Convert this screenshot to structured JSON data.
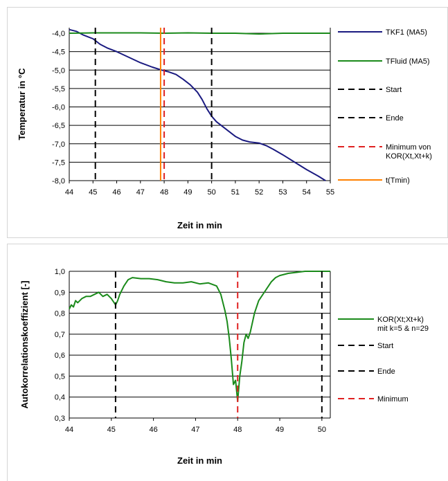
{
  "chart_data": [
    {
      "type": "line",
      "xlabel": "Zeit in min",
      "ylabel": "Temperatur in °C",
      "xlim": [
        44,
        55
      ],
      "ylim": [
        -8.0,
        -3.8
      ],
      "x_ticks": [
        "44",
        "45",
        "46",
        "47",
        "48",
        "49",
        "50",
        "51",
        "52",
        "53",
        "54",
        "55"
      ],
      "y_ticks": [
        "-4,0",
        "-4,5",
        "-5,0",
        "-5,5",
        "-6,0",
        "-6,5",
        "-7,0",
        "-7,5",
        "-8,0"
      ],
      "y_tick_values": [
        -4.0,
        -4.5,
        -5.0,
        -5.5,
        -6.0,
        -6.5,
        -7.0,
        -7.5,
        -8.0
      ],
      "grid": "horizontal",
      "legend_position": "right",
      "series": [
        {
          "name": "TKF1 (MA5)",
          "color": "#1a1a80",
          "x": [
            44.0,
            44.3,
            44.6,
            45.0,
            45.3,
            45.6,
            46.0,
            46.5,
            47.0,
            47.5,
            47.9,
            48.2,
            48.5,
            48.8,
            49.1,
            49.4,
            49.6,
            49.8,
            50.0,
            50.2,
            50.5,
            50.8,
            51.0,
            51.3,
            51.6,
            52.0,
            52.3,
            52.6,
            53.0,
            53.5,
            54.0,
            54.5,
            54.8
          ],
          "y": [
            -3.9,
            -3.95,
            -4.05,
            -4.15,
            -4.3,
            -4.4,
            -4.5,
            -4.65,
            -4.8,
            -4.92,
            -5.0,
            -5.05,
            -5.12,
            -5.25,
            -5.4,
            -5.6,
            -5.8,
            -6.05,
            -6.25,
            -6.4,
            -6.55,
            -6.7,
            -6.8,
            -6.9,
            -6.95,
            -6.98,
            -7.05,
            -7.15,
            -7.3,
            -7.5,
            -7.7,
            -7.88,
            -8.0
          ]
        },
        {
          "name": "TFluid (MA5)",
          "color": "#1a8a1a",
          "x": [
            44.0,
            45.0,
            46.0,
            47.0,
            48.0,
            49.0,
            50.0,
            51.0,
            52.0,
            53.0,
            54.0,
            55.0
          ],
          "y": [
            -4.0,
            -3.99,
            -3.99,
            -3.99,
            -4.0,
            -3.99,
            -4.0,
            -4.0,
            -4.02,
            -4.0,
            -4.0,
            -4.0
          ]
        }
      ],
      "vlines": [
        {
          "name": "Start",
          "x": 45.1,
          "color": "#000000",
          "dash": true
        },
        {
          "name": "Ende",
          "x": 50.0,
          "color": "#000000",
          "dash": true
        },
        {
          "name": "Minimum von KOR(Xt,Xt+k)",
          "x": 48.0,
          "color": "#e02020",
          "dash": true
        },
        {
          "name": "t(Tmin)",
          "x": 47.85,
          "color": "#ff8000",
          "dash": false
        }
      ],
      "legend": [
        {
          "label": "TKF1 (MA5)",
          "color": "#1a1a80",
          "dash": false
        },
        {
          "label": "TFluid (MA5)",
          "color": "#1a8a1a",
          "dash": false
        },
        {
          "label": "Start",
          "color": "#000000",
          "dash": true
        },
        {
          "label": "Ende",
          "color": "#000000",
          "dash": true
        },
        {
          "label": "Minimum von\nKOR(Xt,Xt+k)",
          "color": "#e02020",
          "dash": true
        },
        {
          "label": "t(Tmin)",
          "color": "#ff8000",
          "dash": false
        }
      ]
    },
    {
      "type": "line",
      "xlabel": "Zeit in min",
      "ylabel": "Autokorrelationskoeffizient [-]",
      "xlim": [
        44,
        50.2
      ],
      "ylim": [
        0.3,
        1.0
      ],
      "x_ticks": [
        "44",
        "45",
        "46",
        "47",
        "48",
        "49",
        "50"
      ],
      "y_ticks": [
        "1,0",
        "0,9",
        "0,8",
        "0,7",
        "0,6",
        "0,5",
        "0,4",
        "0,3"
      ],
      "y_tick_values": [
        1.0,
        0.9,
        0.8,
        0.7,
        0.6,
        0.5,
        0.4,
        0.3
      ],
      "grid": "horizontal",
      "legend_position": "right",
      "series": [
        {
          "name": "KOR(Xt;Xt+k)\nmit k=5 & n=29",
          "color": "#1a8a1a",
          "x": [
            44.0,
            44.05,
            44.1,
            44.15,
            44.2,
            44.3,
            44.4,
            44.5,
            44.6,
            44.7,
            44.8,
            44.9,
            45.0,
            45.1,
            45.15,
            45.2,
            45.3,
            45.4,
            45.5,
            45.7,
            45.9,
            46.1,
            46.3,
            46.5,
            46.7,
            46.9,
            47.1,
            47.3,
            47.5,
            47.6,
            47.7,
            47.75,
            47.8,
            47.85,
            47.9,
            47.95,
            48.0,
            48.05,
            48.1,
            48.15,
            48.2,
            48.25,
            48.3,
            48.4,
            48.5,
            48.6,
            48.7,
            48.8,
            48.9,
            49.0,
            49.2,
            49.4,
            49.6,
            49.8,
            50.0,
            50.2
          ],
          "y": [
            0.82,
            0.84,
            0.83,
            0.86,
            0.85,
            0.87,
            0.88,
            0.88,
            0.89,
            0.9,
            0.88,
            0.89,
            0.87,
            0.84,
            0.86,
            0.89,
            0.93,
            0.96,
            0.97,
            0.965,
            0.965,
            0.96,
            0.95,
            0.945,
            0.945,
            0.95,
            0.94,
            0.945,
            0.93,
            0.89,
            0.81,
            0.76,
            0.68,
            0.58,
            0.46,
            0.48,
            0.38,
            0.5,
            0.57,
            0.66,
            0.7,
            0.68,
            0.71,
            0.8,
            0.86,
            0.89,
            0.92,
            0.95,
            0.97,
            0.98,
            0.99,
            0.995,
            1.0,
            1.0,
            1.0,
            1.0
          ]
        }
      ],
      "vlines": [
        {
          "name": "Start",
          "x": 45.1,
          "color": "#000000",
          "dash": true
        },
        {
          "name": "Ende",
          "x": 50.0,
          "color": "#000000",
          "dash": true
        },
        {
          "name": "Minimum",
          "x": 48.0,
          "color": "#e02020",
          "dash": true
        }
      ],
      "legend": [
        {
          "label": "KOR(Xt;Xt+k)\nmit k=5 & n=29",
          "color": "#1a8a1a",
          "dash": false
        },
        {
          "label": "Start",
          "color": "#000000",
          "dash": true
        },
        {
          "label": "Ende",
          "color": "#000000",
          "dash": true
        },
        {
          "label": "Minimum",
          "color": "#e02020",
          "dash": true
        }
      ]
    }
  ]
}
